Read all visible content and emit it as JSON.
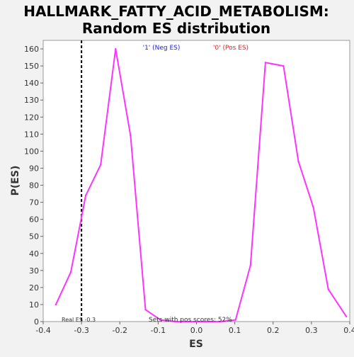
{
  "chart_data": {
    "type": "line",
    "title": "HALLMARK_FATTY_ACID_METABOLISM:",
    "subtitle": "Random ES distribution",
    "xlabel": "ES",
    "ylabel": "P(ES)",
    "xlim": [
      -0.4,
      0.4
    ],
    "ylim": [
      0,
      165
    ],
    "x_ticks": [
      "-0.4",
      "-0.3",
      "-0.2",
      "-0.1",
      "0.0",
      "0.1",
      "0.2",
      "0.3",
      "0.4"
    ],
    "y_ticks": [
      "0",
      "10",
      "20",
      "30",
      "40",
      "50",
      "60",
      "70",
      "80",
      "90",
      "100",
      "110",
      "120",
      "130",
      "140",
      "150",
      "160"
    ],
    "legend": [
      {
        "label": "'1' (Neg ES)",
        "color": "#2222dd"
      },
      {
        "label": "'0' (Pos ES)",
        "color": "#ee2222"
      }
    ],
    "series_color": "#ff33ff",
    "series": [
      {
        "x": [
          -0.367,
          -0.328,
          -0.289,
          -0.25,
          -0.211,
          -0.172,
          -0.133,
          -0.094,
          -0.055,
          -0.016,
          0.023,
          0.063,
          0.102,
          0.141,
          0.18,
          0.227,
          0.266,
          0.305,
          0.344,
          0.391
        ],
        "values": [
          10,
          29,
          74,
          92,
          160,
          109,
          7,
          1,
          0,
          0,
          0,
          0,
          1,
          33,
          152,
          150,
          94,
          67,
          19,
          3
        ]
      }
    ],
    "real_es": -0.3,
    "real_es_label": "Real ES -0.3",
    "annotation": "Sets with pos scores: 52%"
  }
}
